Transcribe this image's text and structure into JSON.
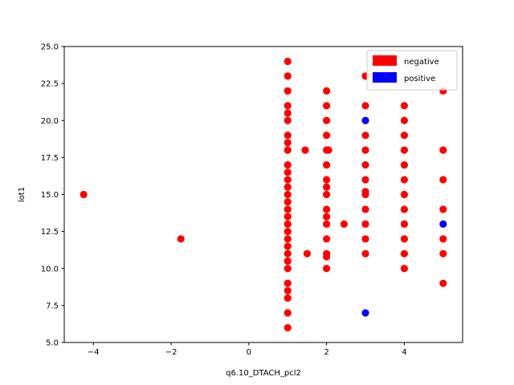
{
  "chart_data": {
    "type": "scatter",
    "xlabel": "q6.10_DTACH_pcl2",
    "ylabel": "lot1",
    "xlim": [
      -4.75,
      5.5
    ],
    "ylim": [
      5.0,
      25.0
    ],
    "xticks": [
      -4,
      -2,
      0,
      2,
      4
    ],
    "yticks": [
      5.0,
      7.5,
      10.0,
      12.5,
      15.0,
      17.5,
      20.0,
      22.5,
      25.0
    ],
    "legend_position": "top-right",
    "grid": false,
    "series": [
      {
        "name": "negative",
        "color": "#ff0000",
        "points": [
          [
            -4.25,
            15
          ],
          [
            -1.75,
            12
          ],
          [
            1,
            6
          ],
          [
            1,
            7
          ],
          [
            1,
            8
          ],
          [
            1,
            8.5
          ],
          [
            1,
            9
          ],
          [
            1,
            10
          ],
          [
            1,
            10.5
          ],
          [
            1,
            11
          ],
          [
            1,
            11.5
          ],
          [
            1,
            12
          ],
          [
            1,
            12.5
          ],
          [
            1,
            13
          ],
          [
            1,
            13.5
          ],
          [
            1,
            14
          ],
          [
            1,
            14.5
          ],
          [
            1,
            15
          ],
          [
            1,
            15.5
          ],
          [
            1,
            16
          ],
          [
            1,
            16.5
          ],
          [
            1,
            17
          ],
          [
            1,
            18
          ],
          [
            1,
            18.5
          ],
          [
            1,
            19
          ],
          [
            1,
            20
          ],
          [
            1,
            20.5
          ],
          [
            1,
            21
          ],
          [
            1,
            22
          ],
          [
            1,
            23
          ],
          [
            1,
            24
          ],
          [
            1.45,
            18
          ],
          [
            1.5,
            11
          ],
          [
            2,
            10
          ],
          [
            2,
            10.8
          ],
          [
            2,
            11
          ],
          [
            2,
            12
          ],
          [
            2,
            13
          ],
          [
            2,
            13.5
          ],
          [
            2,
            14
          ],
          [
            2,
            15
          ],
          [
            2,
            15.5
          ],
          [
            2,
            16
          ],
          [
            2,
            17
          ],
          [
            2,
            18
          ],
          [
            2,
            19
          ],
          [
            2,
            20
          ],
          [
            2,
            21
          ],
          [
            2,
            22
          ],
          [
            2.05,
            18
          ],
          [
            2.45,
            13
          ],
          [
            3,
            11
          ],
          [
            3,
            12
          ],
          [
            3,
            13
          ],
          [
            3,
            14
          ],
          [
            3,
            15
          ],
          [
            3,
            15.2
          ],
          [
            3,
            16
          ],
          [
            3,
            17
          ],
          [
            3,
            18
          ],
          [
            3,
            19
          ],
          [
            3,
            21
          ],
          [
            3,
            23
          ],
          [
            4,
            10
          ],
          [
            4,
            11
          ],
          [
            4,
            12
          ],
          [
            4,
            13
          ],
          [
            4,
            14
          ],
          [
            4,
            15
          ],
          [
            4,
            16
          ],
          [
            4,
            17
          ],
          [
            4,
            18
          ],
          [
            4,
            19
          ],
          [
            4,
            20
          ],
          [
            4,
            21
          ],
          [
            5,
            9
          ],
          [
            5,
            11
          ],
          [
            5,
            12
          ],
          [
            5,
            14
          ],
          [
            5,
            16
          ],
          [
            5,
            18
          ],
          [
            5,
            22
          ]
        ]
      },
      {
        "name": "positive",
        "color": "#0000ff",
        "points": [
          [
            3,
            20
          ],
          [
            3,
            7
          ],
          [
            5,
            13
          ]
        ]
      }
    ]
  }
}
